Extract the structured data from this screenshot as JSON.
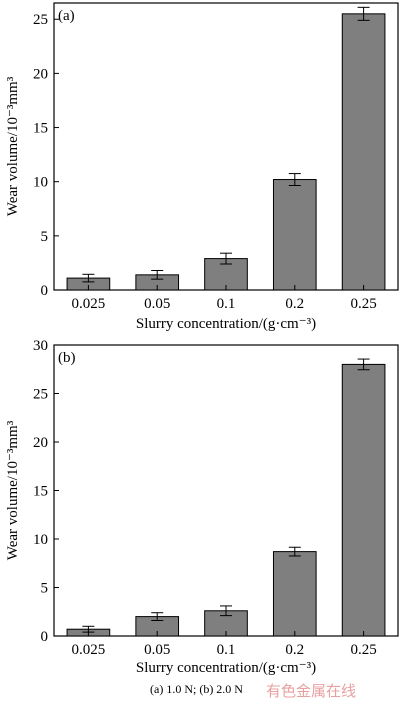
{
  "caption": "(a)  1.0 N; (b) 2.0 N",
  "watermark": "有色金属在线",
  "chart_data": [
    {
      "type": "bar",
      "panel_label": "(a)",
      "categories": [
        "0.025",
        "0.05",
        "0.1",
        "0.2",
        "0.25"
      ],
      "values": [
        1.1,
        1.4,
        2.9,
        10.2,
        25.5
      ],
      "errors": [
        0.35,
        0.4,
        0.5,
        0.55,
        0.6
      ],
      "xlabel": "Slurry concentration/(g·cm⁻³)",
      "ylabel": "Wear volume/10⁻³mm³",
      "ylim": [
        0,
        26.5
      ],
      "yticks": [
        "0",
        "5",
        "10",
        "15",
        "20",
        "25"
      ],
      "ytick_values": [
        0,
        5,
        10,
        15,
        20,
        25
      ],
      "bar_color": "#7f7f7f"
    },
    {
      "type": "bar",
      "panel_label": "(b)",
      "categories": [
        "0.025",
        "0.05",
        "0.1",
        "0.2",
        "0.25"
      ],
      "values": [
        0.7,
        2.0,
        2.6,
        8.7,
        28.0
      ],
      "errors": [
        0.3,
        0.4,
        0.5,
        0.45,
        0.55
      ],
      "xlabel": "Slurry concentration/(g·cm⁻³)",
      "ylabel": "Wear volume/10⁻³mm³",
      "ylim": [
        0,
        30
      ],
      "yticks": [
        "0",
        "5",
        "10",
        "15",
        "20",
        "25",
        "30"
      ],
      "ytick_values": [
        0,
        5,
        10,
        15,
        20,
        25,
        30
      ],
      "bar_color": "#7f7f7f"
    }
  ]
}
